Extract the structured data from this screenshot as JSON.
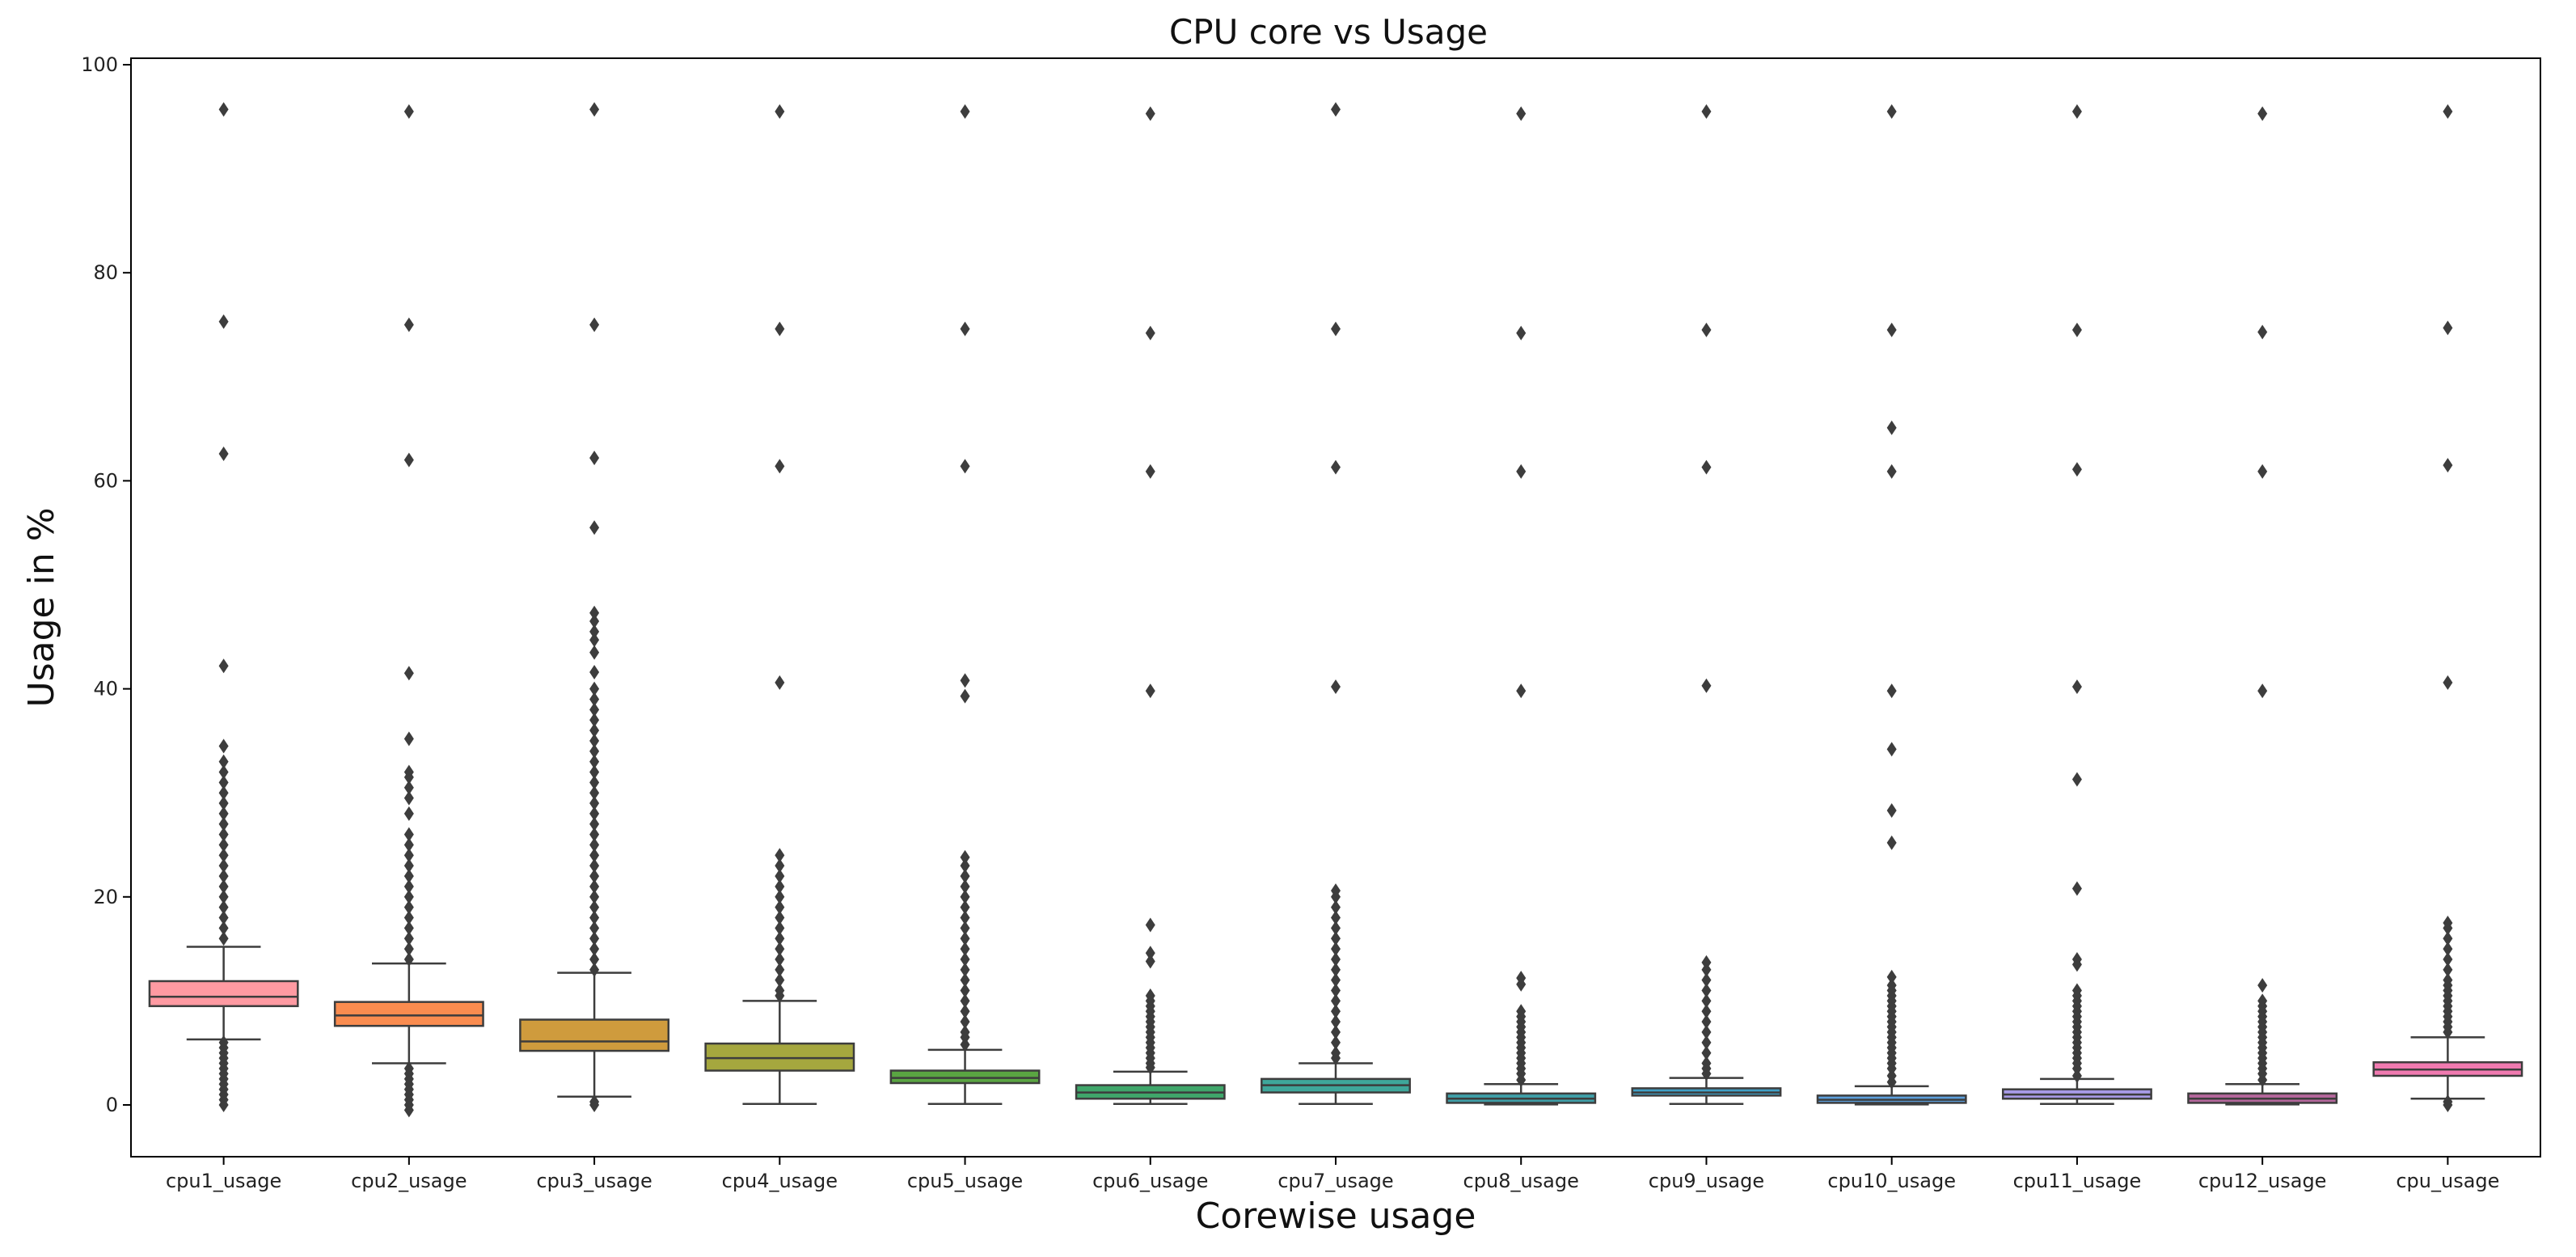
{
  "chart_data": {
    "type": "boxplot",
    "title": "CPU core vs Usage",
    "xlabel": "Corewise usage",
    "ylabel": "Usage in %",
    "ylim": [
      -5,
      100
    ],
    "yticks": [
      0,
      20,
      40,
      60,
      80,
      100
    ],
    "grid": false,
    "series": [
      {
        "name": "cpu1_usage",
        "color": "#ff9aa2",
        "q1": 9.5,
        "median": 10.4,
        "q3": 11.9,
        "whisker_low": 6.3,
        "whisker_high": 15.2,
        "outliers_high": [
          16,
          17,
          18,
          19,
          20,
          21,
          22,
          23,
          24,
          25,
          26,
          27,
          28,
          29,
          30,
          31,
          32,
          33,
          34.5,
          42.2,
          62.6,
          75.3,
          95.7
        ],
        "outliers_low": [
          0,
          0.5,
          1,
          1.5,
          2,
          2.5,
          3,
          3.5,
          4,
          4.5,
          5,
          5.5,
          6
        ]
      },
      {
        "name": "cpu2_usage",
        "color": "#fa8c4f",
        "q1": 7.6,
        "median": 8.6,
        "q3": 9.9,
        "whisker_low": 4.0,
        "whisker_high": 13.6,
        "outliers_high": [
          14,
          15,
          16,
          17,
          18,
          19,
          20,
          21,
          22,
          23,
          24,
          25,
          26,
          28,
          29.5,
          30.5,
          31.5,
          32,
          35.2,
          41.5,
          62.0,
          75.0,
          95.5
        ],
        "outliers_low": [
          -0.5,
          0,
          0.5,
          1,
          1.5,
          2,
          2.5,
          3,
          3.5
        ]
      },
      {
        "name": "cpu3_usage",
        "color": "#cf9b3d",
        "q1": 5.2,
        "median": 6.1,
        "q3": 8.2,
        "whisker_low": 0.8,
        "whisker_high": 12.7,
        "outliers_high": [
          13,
          14,
          15,
          16,
          17,
          18,
          19,
          20,
          21,
          22,
          23,
          24,
          25,
          26,
          27,
          28,
          29,
          30,
          31,
          32,
          33,
          34,
          35,
          36,
          37,
          38,
          39,
          40,
          41.6,
          43.5,
          44.7,
          45.5,
          46.5,
          47.3,
          55.5,
          62.2,
          75.0,
          95.7
        ],
        "outliers_low": [
          0,
          0.3
        ]
      },
      {
        "name": "cpu4_usage",
        "color": "#a5a73e",
        "q1": 3.3,
        "median": 4.5,
        "q3": 5.9,
        "whisker_low": 0.1,
        "whisker_high": 10.0,
        "outliers_high": [
          10.5,
          11,
          12,
          13,
          14,
          15,
          16,
          17,
          18,
          19,
          20,
          21,
          22,
          23,
          24,
          40.6,
          61.4,
          74.6,
          95.5
        ],
        "outliers_low": []
      },
      {
        "name": "cpu5_usage",
        "color": "#5aa542",
        "q1": 2.1,
        "median": 2.6,
        "q3": 3.3,
        "whisker_low": 0.1,
        "whisker_high": 5.3,
        "outliers_high": [
          5.8,
          6.5,
          7,
          8,
          9,
          10,
          11,
          12,
          13,
          14,
          15,
          16,
          17,
          18,
          19,
          20,
          21,
          22,
          23,
          23.8,
          39.3,
          40.8,
          61.4,
          74.6,
          95.5
        ],
        "outliers_low": []
      },
      {
        "name": "cpu6_usage",
        "color": "#3fa66a",
        "q1": 0.6,
        "median": 1.2,
        "q3": 1.9,
        "whisker_low": 0.1,
        "whisker_high": 3.2,
        "outliers_high": [
          3.6,
          4,
          4.5,
          5,
          5.5,
          6,
          6.5,
          7,
          7.5,
          8,
          8.5,
          9,
          9.5,
          10,
          10.5,
          13.8,
          14.6,
          17.3,
          39.8,
          60.9,
          74.2,
          95.3
        ],
        "outliers_low": []
      },
      {
        "name": "cpu7_usage",
        "color": "#3ea79b",
        "q1": 1.2,
        "median": 1.9,
        "q3": 2.5,
        "whisker_low": 0.1,
        "whisker_high": 4.0,
        "outliers_high": [
          4.5,
          5,
          6,
          7,
          8,
          9,
          10,
          11,
          12,
          13,
          14,
          15,
          16,
          17,
          18,
          19,
          20,
          20.6,
          40.2,
          61.3,
          74.6,
          95.7
        ],
        "outliers_low": []
      },
      {
        "name": "cpu8_usage",
        "color": "#3f9fa8",
        "q1": 0.2,
        "median": 0.6,
        "q3": 1.1,
        "whisker_low": 0.05,
        "whisker_high": 2.0,
        "outliers_high": [
          2.4,
          3,
          3.5,
          4,
          4.5,
          5,
          5.5,
          6,
          6.5,
          7,
          7.5,
          8,
          8.5,
          9,
          11.6,
          12.2,
          39.8,
          60.9,
          74.2,
          95.3
        ],
        "outliers_low": []
      },
      {
        "name": "cpu9_usage",
        "color": "#40a0c6",
        "q1": 0.9,
        "median": 1.2,
        "q3": 1.6,
        "whisker_low": 0.1,
        "whisker_high": 2.6,
        "outliers_high": [
          3,
          3.5,
          4,
          5,
          6,
          7,
          8,
          9,
          10,
          11,
          12,
          13,
          13.7,
          40.3,
          61.3,
          74.5,
          95.5
        ],
        "outliers_low": []
      },
      {
        "name": "cpu10_usage",
        "color": "#5c9fdc",
        "q1": 0.2,
        "median": 0.5,
        "q3": 0.9,
        "whisker_low": 0.05,
        "whisker_high": 1.8,
        "outliers_high": [
          2.2,
          2.8,
          3.5,
          4,
          4.5,
          5,
          5.5,
          6,
          6.5,
          7,
          7.5,
          8,
          8.5,
          9,
          9.5,
          10,
          10.5,
          11,
          11.5,
          12.3,
          25.2,
          28.3,
          34.2,
          39.8,
          60.9,
          65.1,
          74.5,
          95.5
        ],
        "outliers_low": []
      },
      {
        "name": "cpu11_usage",
        "color": "#a79ae6",
        "q1": 0.6,
        "median": 1.0,
        "q3": 1.5,
        "whisker_low": 0.1,
        "whisker_high": 2.5,
        "outliers_high": [
          2.8,
          3.5,
          4,
          4.5,
          5,
          5.5,
          6,
          6.5,
          7,
          7.5,
          8,
          8.5,
          9,
          9.5,
          10,
          10.5,
          11,
          13.5,
          14,
          20.8,
          31.3,
          40.2,
          61.1,
          74.5,
          95.5
        ],
        "outliers_low": []
      },
      {
        "name": "cpu12_usage",
        "color": "#b5679c",
        "q1": 0.2,
        "median": 0.6,
        "q3": 1.1,
        "whisker_low": 0.05,
        "whisker_high": 2.0,
        "outliers_high": [
          2.4,
          3,
          3.5,
          4,
          4.5,
          5,
          5.5,
          6,
          6.5,
          7,
          7.5,
          8,
          8.5,
          9,
          9.5,
          10,
          11.5,
          39.8,
          60.9,
          74.3,
          95.3
        ],
        "outliers_low": []
      },
      {
        "name": "cpu_usage",
        "color": "#f07ab0",
        "q1": 2.8,
        "median": 3.4,
        "q3": 4.1,
        "whisker_low": 0.6,
        "whisker_high": 6.5,
        "outliers_high": [
          7,
          7.5,
          8,
          8.5,
          9,
          9.5,
          10,
          10.5,
          11,
          11.5,
          12,
          13,
          14,
          15,
          16,
          17,
          17.5,
          40.6,
          61.5,
          74.7,
          95.5
        ],
        "outliers_low": [
          0,
          0.3
        ]
      }
    ]
  }
}
